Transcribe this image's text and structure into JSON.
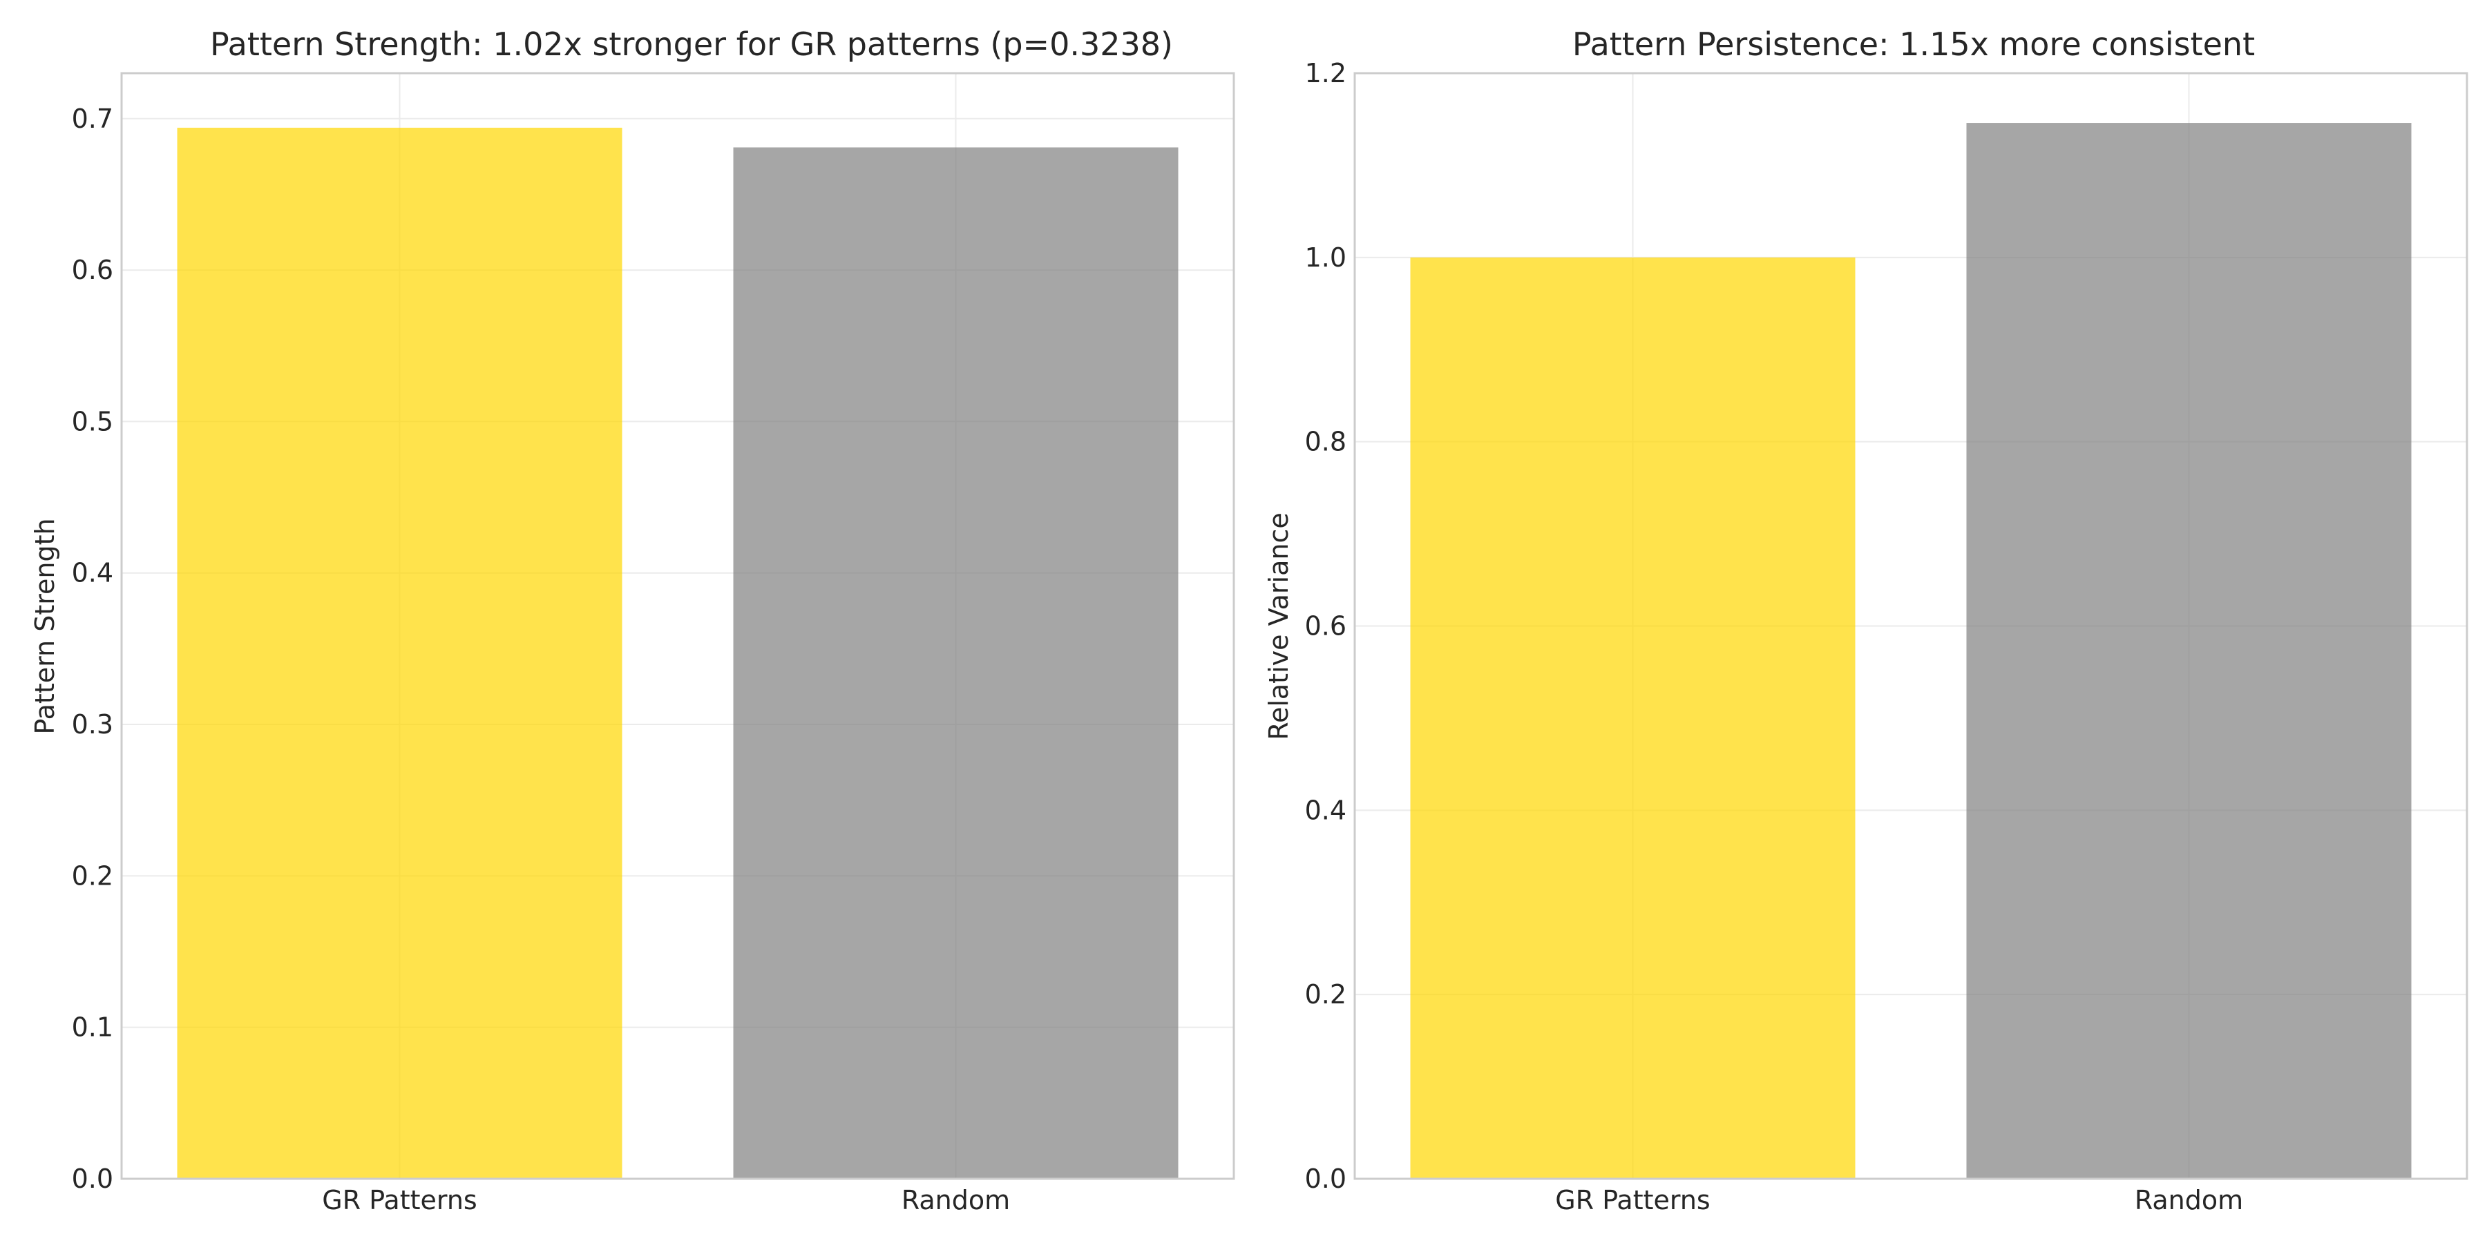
{
  "chart_data": [
    {
      "type": "bar",
      "title": "Pattern Strength: 1.02x stronger for GR patterns (p=0.3238)",
      "xlabel": "",
      "ylabel": "Pattern Strength",
      "categories": [
        "GR Patterns",
        "Random"
      ],
      "values": [
        0.694,
        0.681
      ],
      "colors": [
        "#FFD700",
        "#808080"
      ],
      "ylim": [
        0,
        0.73
      ],
      "yticks": [
        "0.0",
        "0.1",
        "0.2",
        "0.3",
        "0.4",
        "0.5",
        "0.6",
        "0.7"
      ],
      "grid": true,
      "legend": "none"
    },
    {
      "type": "bar",
      "title": "Pattern Persistence: 1.15x more consistent",
      "xlabel": "",
      "ylabel": "Relative Variance",
      "categories": [
        "GR Patterns",
        "Random"
      ],
      "values": [
        1.0,
        1.146
      ],
      "colors": [
        "#FFD700",
        "#808080"
      ],
      "ylim": [
        0,
        1.2
      ],
      "yticks": [
        "0.0",
        "0.2",
        "0.4",
        "0.6",
        "0.8",
        "1.0",
        "1.2"
      ],
      "grid": true,
      "legend": "none"
    }
  ]
}
